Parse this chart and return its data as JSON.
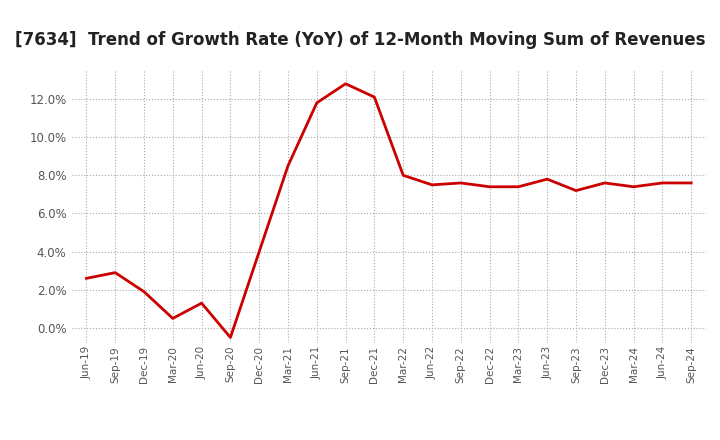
{
  "title": "[7634]  Trend of Growth Rate (YoY) of 12-Month Moving Sum of Revenues",
  "title_fontsize": 12,
  "line_color": "#cc0000",
  "background_color": "#ffffff",
  "grid_color": "#aaaaaa",
  "x_labels": [
    "Jun-19",
    "Sep-19",
    "Dec-19",
    "Mar-20",
    "Jun-20",
    "Sep-20",
    "Dec-20",
    "Mar-21",
    "Jun-21",
    "Sep-21",
    "Dec-21",
    "Mar-22",
    "Jun-22",
    "Sep-22",
    "Dec-22",
    "Mar-23",
    "Jun-23",
    "Sep-23",
    "Dec-23",
    "Mar-24",
    "Jun-24",
    "Sep-24"
  ],
  "y_values": [
    2.6,
    2.9,
    1.9,
    0.5,
    1.3,
    -0.5,
    4.0,
    8.5,
    11.8,
    12.8,
    12.1,
    8.0,
    7.5,
    7.6,
    7.4,
    7.4,
    7.8,
    7.2,
    7.6,
    7.4,
    7.6,
    7.6
  ],
  "ylim": [
    -0.8,
    13.5
  ],
  "yticks": [
    0.0,
    2.0,
    4.0,
    6.0,
    8.0,
    10.0,
    12.0
  ],
  "line_width": 2.0
}
